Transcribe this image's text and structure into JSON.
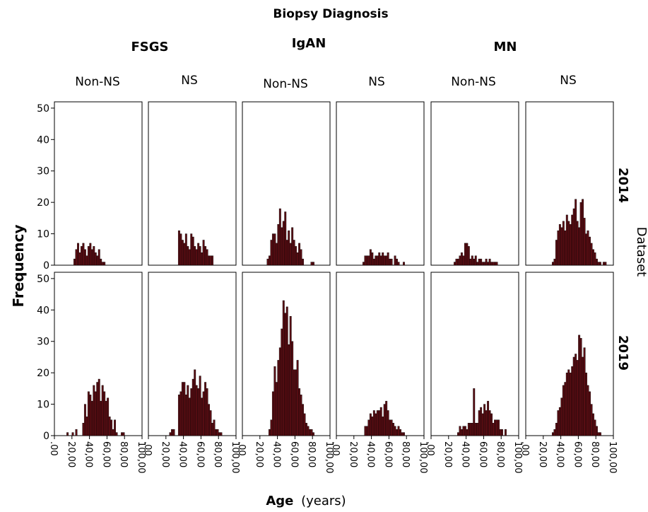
{
  "chart_data": {
    "type": "bar",
    "title": "Biopsy Diagnosis",
    "ylabel": "Frequency",
    "xlabel_main": "Age",
    "xlabel_unit": "(years)",
    "row_axis_label": "Dataset",
    "ylim": [
      0,
      52
    ],
    "yticks": [
      "0",
      "10",
      "20",
      "30",
      "40",
      "50"
    ],
    "xlim": [
      0,
      100
    ],
    "xticks": [
      ".00",
      "20,00",
      "40,00",
      "60,00",
      "80,00",
      "100,00"
    ],
    "bin_start": 8,
    "bin_width": 2,
    "groups": [
      {
        "name": "FSGS",
        "subgroups": [
          "Non-NS",
          "NS"
        ]
      },
      {
        "name": "IgAN",
        "subgroups": [
          "Non-NS",
          "NS"
        ]
      },
      {
        "name": "MN",
        "subgroups": [
          "Non-NS",
          "NS"
        ]
      }
    ],
    "rows": [
      "2014",
      "2019"
    ],
    "bar_color": "#5a0d13",
    "panels": [
      {
        "group": "FSGS",
        "subgroup": "Non-NS",
        "dataset": "2014",
        "values": [
          0,
          0,
          0,
          0,
          0,
          0,
          0,
          2,
          5,
          7,
          4,
          6,
          7,
          5,
          3,
          6,
          7,
          5,
          6,
          4,
          3,
          5,
          2,
          1,
          1,
          0,
          0,
          0,
          0,
          0,
          0,
          0,
          0,
          0,
          0,
          0,
          0,
          0,
          0,
          0,
          0,
          0,
          0,
          0,
          0,
          0,
          0
        ]
      },
      {
        "group": "FSGS",
        "subgroup": "NS",
        "dataset": "2014",
        "values": [
          0,
          0,
          0,
          0,
          0,
          0,
          0,
          0,
          0,
          0,
          0,
          0,
          0,
          11,
          10,
          8,
          7,
          10,
          6,
          5,
          10,
          9,
          6,
          5,
          7,
          6,
          4,
          8,
          6,
          5,
          3,
          3,
          3,
          0,
          0,
          0,
          0,
          0,
          0,
          0,
          0,
          0,
          0,
          0,
          0,
          0,
          0
        ]
      },
      {
        "group": "IgAN",
        "subgroup": "Non-NS",
        "dataset": "2014",
        "values": [
          0,
          0,
          0,
          0,
          0,
          0,
          0,
          0,
          0,
          0,
          2,
          3,
          8,
          10,
          10,
          7,
          13,
          18,
          12,
          14,
          17,
          8,
          11,
          7,
          12,
          8,
          6,
          4,
          7,
          5,
          2,
          0,
          0,
          0,
          0,
          1,
          1,
          0,
          0,
          0,
          0,
          0,
          0,
          0,
          0,
          0,
          0
        ]
      },
      {
        "group": "IgAN",
        "subgroup": "NS",
        "dataset": "2014",
        "values": [
          0,
          0,
          0,
          0,
          0,
          0,
          0,
          0,
          0,
          0,
          0,
          1,
          3,
          3,
          3,
          5,
          4,
          2,
          3,
          3,
          4,
          3,
          4,
          3,
          3,
          4,
          2,
          2,
          0,
          3,
          2,
          1,
          0,
          0,
          1,
          0,
          0,
          0,
          0,
          0,
          0,
          0,
          0,
          0,
          0,
          0,
          0
        ]
      },
      {
        "group": "MN",
        "subgroup": "Non-NS",
        "dataset": "2014",
        "values": [
          0,
          0,
          0,
          0,
          0,
          0,
          0,
          0,
          0,
          1,
          2,
          2,
          3,
          4,
          3,
          7,
          7,
          6,
          2,
          3,
          2,
          3,
          1,
          2,
          2,
          1,
          1,
          2,
          1,
          2,
          1,
          1,
          1,
          1,
          0,
          0,
          0,
          0,
          0,
          0,
          0,
          0,
          0,
          0,
          0,
          0,
          0
        ]
      },
      {
        "group": "MN",
        "subgroup": "NS",
        "dataset": "2014",
        "values": [
          0,
          0,
          0,
          0,
          0,
          0,
          0,
          0,
          0,
          0,
          0,
          1,
          2,
          8,
          11,
          13,
          12,
          14,
          11,
          16,
          14,
          13,
          16,
          18,
          21,
          14,
          12,
          20,
          21,
          15,
          10,
          11,
          9,
          7,
          5,
          4,
          2,
          1,
          1,
          0,
          1,
          1,
          0,
          0,
          0,
          0,
          0
        ]
      },
      {
        "group": "FSGS",
        "subgroup": "Non-NS",
        "dataset": "2019",
        "values": [
          0,
          0,
          0,
          1,
          0,
          0,
          1,
          0,
          2,
          0,
          0,
          0,
          4,
          10,
          6,
          14,
          13,
          11,
          16,
          14,
          17,
          18,
          11,
          16,
          14,
          11,
          12,
          6,
          5,
          2,
          5,
          1,
          0,
          0,
          1,
          1,
          0,
          0,
          0,
          0,
          0,
          0,
          0,
          0,
          0,
          0,
          0
        ]
      },
      {
        "group": "FSGS",
        "subgroup": "NS",
        "dataset": "2019",
        "values": [
          0,
          0,
          0,
          0,
          0,
          0,
          0,
          0,
          1,
          2,
          2,
          0,
          0,
          13,
          14,
          17,
          17,
          13,
          16,
          12,
          15,
          18,
          21,
          16,
          15,
          19,
          12,
          14,
          17,
          15,
          10,
          8,
          4,
          5,
          2,
          2,
          1,
          1,
          0,
          0,
          0,
          0,
          0,
          0,
          0,
          0,
          0
        ]
      },
      {
        "group": "IgAN",
        "subgroup": "Non-NS",
        "dataset": "2019",
        "values": [
          0,
          0,
          0,
          0,
          0,
          0,
          0,
          0,
          0,
          0,
          0,
          2,
          5,
          14,
          22,
          17,
          24,
          28,
          34,
          43,
          39,
          41,
          29,
          38,
          30,
          21,
          21,
          24,
          15,
          13,
          10,
          7,
          4,
          3,
          2,
          2,
          1,
          0,
          0,
          0,
          0,
          0,
          0,
          0,
          0,
          0,
          0
        ]
      },
      {
        "group": "IgAN",
        "subgroup": "NS",
        "dataset": "2019",
        "values": [
          0,
          0,
          0,
          0,
          0,
          0,
          0,
          0,
          0,
          0,
          0,
          0,
          3,
          3,
          5,
          7,
          6,
          8,
          7,
          8,
          8,
          9,
          6,
          10,
          11,
          8,
          5,
          5,
          4,
          3,
          2,
          3,
          2,
          1,
          1,
          0,
          0,
          0,
          0,
          0,
          0,
          0,
          0,
          0,
          0,
          0,
          0
        ]
      },
      {
        "group": "MN",
        "subgroup": "Non-NS",
        "dataset": "2019",
        "values": [
          0,
          0,
          0,
          0,
          0,
          0,
          0,
          0,
          0,
          0,
          0,
          1,
          3,
          2,
          3,
          3,
          2,
          4,
          4,
          4,
          15,
          4,
          4,
          8,
          9,
          7,
          10,
          8,
          11,
          8,
          7,
          4,
          5,
          5,
          5,
          2,
          2,
          0,
          2,
          0,
          0,
          0,
          0,
          0,
          0,
          0,
          0
        ]
      },
      {
        "group": "MN",
        "subgroup": "NS",
        "dataset": "2019",
        "values": [
          0,
          0,
          0,
          0,
          0,
          0,
          0,
          0,
          0,
          0,
          0,
          1,
          2,
          4,
          8,
          9,
          12,
          16,
          17,
          20,
          21,
          20,
          22,
          25,
          26,
          24,
          32,
          31,
          25,
          28,
          20,
          16,
          14,
          10,
          7,
          5,
          3,
          1,
          1,
          0,
          0,
          0,
          0,
          0,
          0,
          0,
          0
        ]
      }
    ]
  }
}
